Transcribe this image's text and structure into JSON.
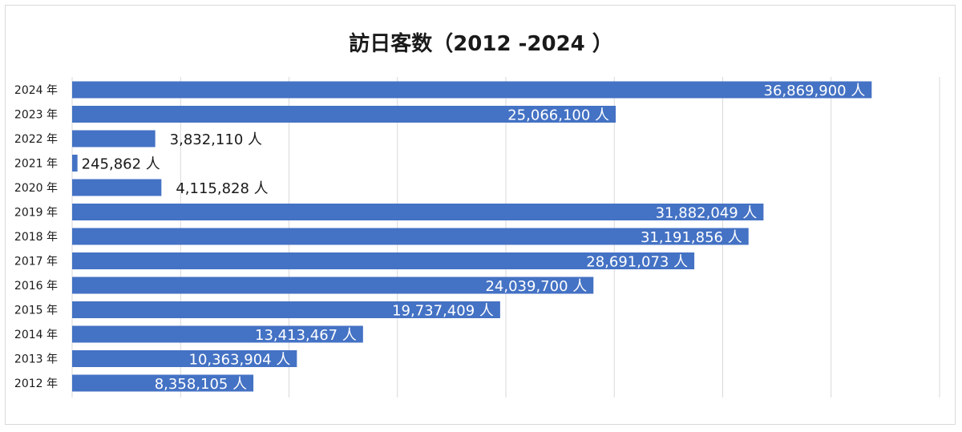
{
  "chart_data": {
    "type": "bar",
    "orientation": "horizontal",
    "title": "訪日客数（2012 -2024 ）",
    "xlabel": "",
    "ylabel": "",
    "xlim": [
      0,
      40000000
    ],
    "grid": true,
    "legend": "none",
    "bar_color": "#4472c4",
    "categories": [
      "2024 年",
      "2023 年",
      "2022 年",
      "2021 年",
      "2020 年",
      "2019 年",
      "2018 年",
      "2017 年",
      "2016 年",
      "2015 年",
      "2014 年",
      "2013 年",
      "2012 年"
    ],
    "values": [
      36869900,
      25066100,
      3832110,
      245862,
      4115828,
      31882049,
      31191856,
      28691073,
      24039700,
      19737409,
      13413467,
      10363904,
      8358105
    ],
    "data_labels": [
      "36,869,900 人",
      "25,066,100 人",
      "3,832,110 人",
      "245,862 人",
      "4,115,828 人",
      "31,882,049 人",
      "31,191,856 人",
      "28,691,073 人",
      "24,039,700 人",
      "19,737,409 人",
      "13,413,467 人",
      "10,363,904 人",
      "8,358,105 人"
    ]
  }
}
